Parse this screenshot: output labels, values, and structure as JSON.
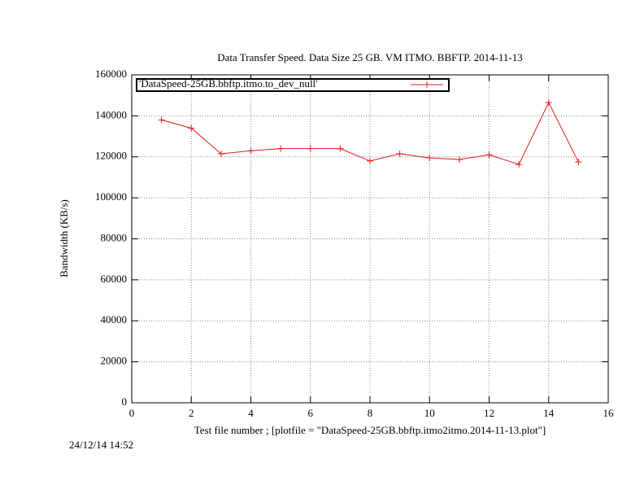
{
  "chart_data": {
    "type": "line",
    "title": "Data Transfer Speed. Data Size 25 GB. VM ITMO. BBFTP. 2014-11-13",
    "x_label": "Test file number ; [plotfile = \"DataSpeed-25GB.bbftp.itmo2itmo.2014-11-13.plot\"]",
    "y_label": "Bandwidth (KB/s)",
    "annotation": "24/12/14 14:52",
    "x": [
      1,
      2,
      3,
      4,
      5,
      6,
      7,
      8,
      9,
      10,
      11,
      12,
      13,
      14,
      15
    ],
    "series": [
      {
        "name": "'DataSpeed-25GB.bbftp.itmo.to_dev_null'",
        "color": "#e41a1c",
        "values": [
          138000,
          134000,
          121500,
          123000,
          124000,
          124000,
          124000,
          118000,
          121500,
          119500,
          118700,
          121000,
          116300,
          146500,
          117500
        ]
      }
    ],
    "xlim": [
      0,
      16
    ],
    "xticks": [
      0,
      2,
      4,
      6,
      8,
      10,
      12,
      14,
      16
    ],
    "ylim": [
      0,
      160000
    ],
    "yticks": [
      0,
      20000,
      40000,
      60000,
      80000,
      100000,
      120000,
      140000,
      160000
    ],
    "grid": true,
    "legend": "top-left"
  }
}
